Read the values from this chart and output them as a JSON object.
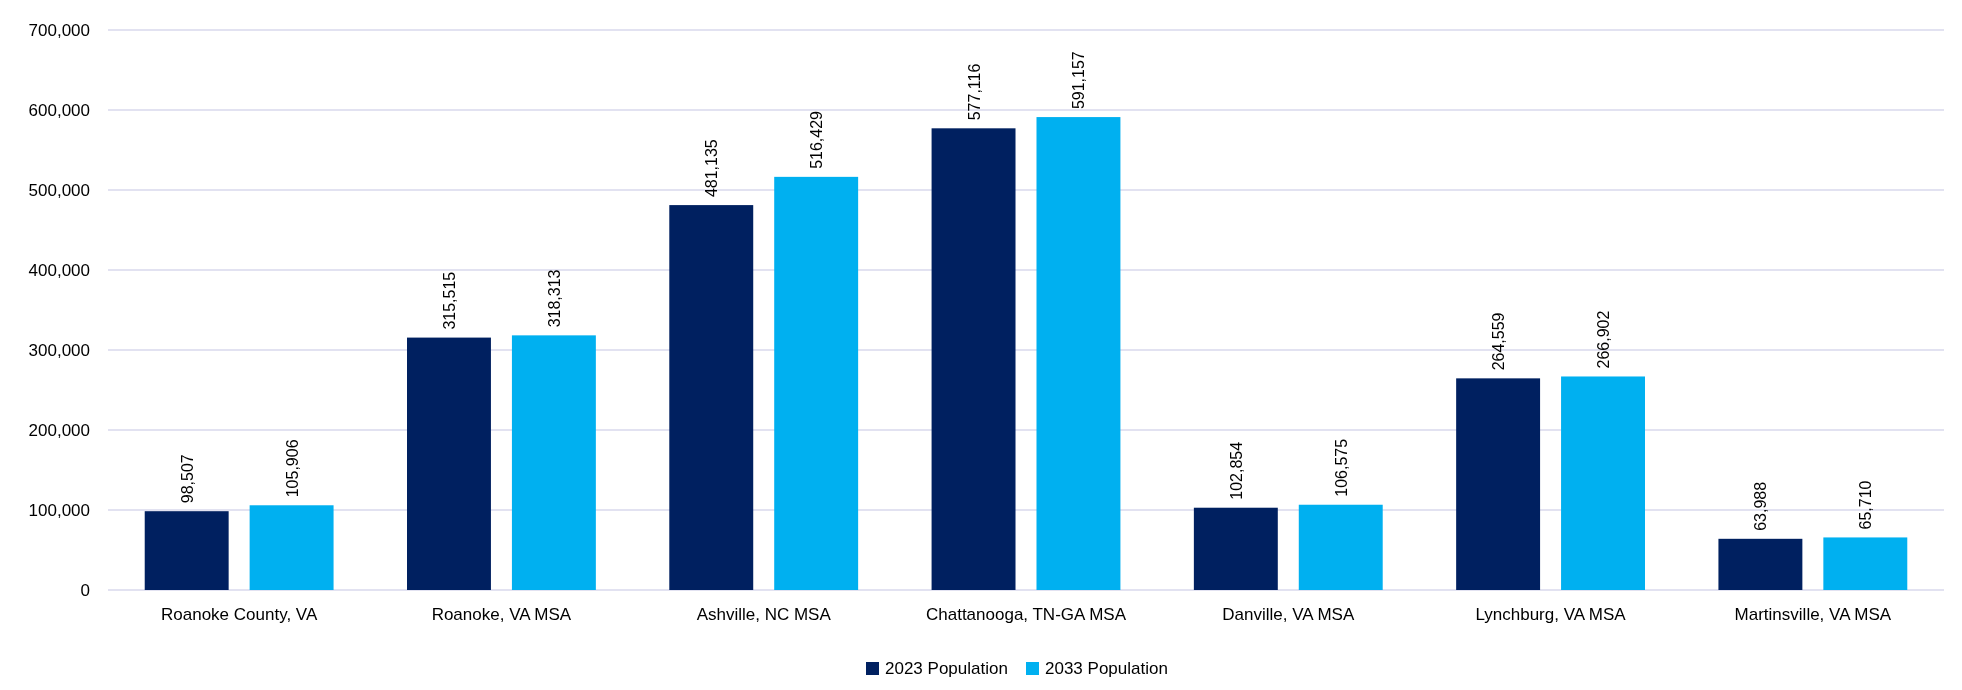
{
  "chart_data": {
    "type": "bar",
    "categories": [
      "Roanoke County, VA",
      "Roanoke, VA MSA",
      "Ashville, NC MSA",
      "Chattanooga, TN-GA MSA",
      "Danville, VA MSA",
      "Lynchburg, VA MSA",
      "Martinsville, VA MSA"
    ],
    "series": [
      {
        "name": "2023 Population",
        "color": "#002060",
        "values": [
          98507,
          315515,
          481135,
          577116,
          102854,
          264559,
          63988
        ],
        "value_labels": [
          "98,507",
          "315,515",
          "481,135",
          "577,116",
          "102,854",
          "264,559",
          "63,988"
        ]
      },
      {
        "name": "2033 Population",
        "color": "#00b0f0",
        "values": [
          105906,
          318313,
          516429,
          591157,
          106575,
          266902,
          65710
        ],
        "value_labels": [
          "105,906",
          "318,313",
          "516,429",
          "591,157",
          "106,575",
          "266,902",
          "65,710"
        ]
      }
    ],
    "ylim": [
      0,
      700000
    ],
    "yticks": [
      {
        "value": 0,
        "label": "0"
      },
      {
        "value": 100000,
        "label": "100,000"
      },
      {
        "value": 200000,
        "label": "200,000"
      },
      {
        "value": 300000,
        "label": "300,000"
      },
      {
        "value": 400000,
        "label": "400,000"
      },
      {
        "value": 500000,
        "label": "500,000"
      },
      {
        "value": 600000,
        "label": "600,000"
      },
      {
        "value": 700000,
        "label": "700,000"
      }
    ],
    "grid": "y",
    "legend": "bottom"
  }
}
